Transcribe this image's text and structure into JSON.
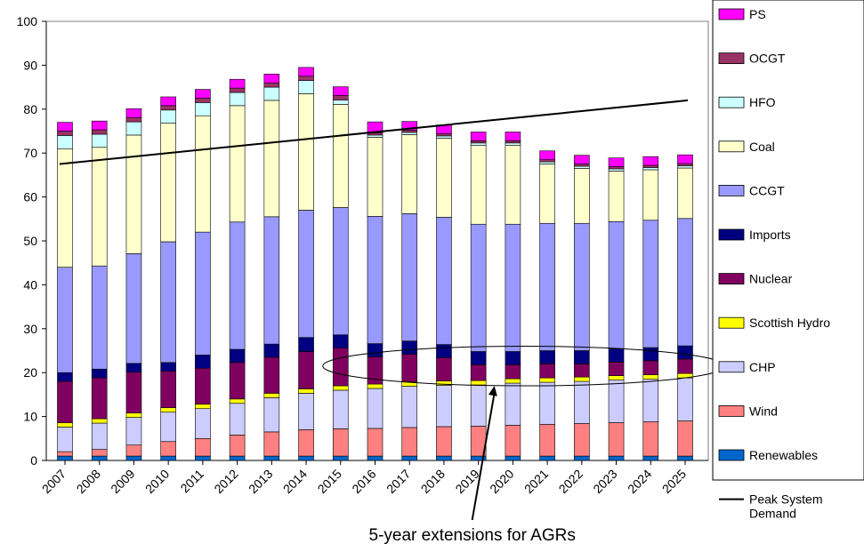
{
  "chart_data": {
    "type": "bar",
    "stacked": true,
    "title": "",
    "xlabel": "",
    "ylabel": "",
    "ylim": [
      0,
      100
    ],
    "yticks": [
      0,
      10,
      20,
      30,
      40,
      50,
      60,
      70,
      80,
      90,
      100
    ],
    "grid": false,
    "legend_position": "right",
    "categories": [
      "2007",
      "2008",
      "2009",
      "2010",
      "2011",
      "2012",
      "2013",
      "2014",
      "2015",
      "2016",
      "2017",
      "2018",
      "2019",
      "2020",
      "2021",
      "2022",
      "2023",
      "2024",
      "2025"
    ],
    "series": [
      {
        "name": "Renewables",
        "color": "#0066cc",
        "values": [
          1.0,
          1.0,
          1.0,
          1.0,
          1.0,
          1.0,
          1.0,
          1.0,
          1.0,
          1.0,
          1.0,
          1.0,
          1.0,
          1.0,
          1.0,
          1.0,
          1.0,
          1.0,
          1.0
        ]
      },
      {
        "name": "Wind",
        "color": "#ff8080",
        "values": [
          1.0,
          1.5,
          2.5,
          3.3,
          4.0,
          4.8,
          5.5,
          6.0,
          6.2,
          6.3,
          6.5,
          6.7,
          6.8,
          7.0,
          7.2,
          7.4,
          7.6,
          7.8,
          8.0
        ]
      },
      {
        "name": "CHP",
        "color": "#ccccff",
        "values": [
          5.6,
          6.0,
          6.3,
          6.7,
          6.8,
          7.2,
          7.8,
          8.3,
          8.8,
          9.1,
          9.4,
          9.4,
          9.4,
          9.6,
          9.6,
          9.6,
          9.7,
          9.7,
          9.8
        ]
      },
      {
        "name": "Scottish Hydro",
        "color": "#ffff00",
        "values": [
          1.0,
          1.0,
          1.0,
          1.0,
          1.0,
          1.0,
          1.0,
          1.0,
          1.0,
          1.0,
          1.0,
          1.0,
          1.0,
          1.0,
          1.0,
          1.0,
          1.0,
          1.0,
          1.0
        ]
      },
      {
        "name": "Nuclear",
        "color": "#800060",
        "values": [
          9.4,
          9.3,
          9.3,
          8.3,
          8.2,
          8.3,
          8.2,
          8.5,
          8.6,
          6.2,
          6.3,
          5.3,
          3.6,
          3.2,
          3.2,
          3.0,
          3.1,
          3.2,
          3.3
        ]
      },
      {
        "name": "Imports",
        "color": "#000080",
        "values": [
          2.0,
          2.0,
          2.0,
          2.0,
          3.0,
          3.0,
          3.0,
          3.2,
          3.0,
          3.0,
          3.0,
          3.0,
          3.0,
          3.0,
          3.0,
          3.0,
          3.0,
          3.0,
          3.0
        ]
      },
      {
        "name": "CCGT",
        "color": "#9999ff",
        "values": [
          24.0,
          23.5,
          25.0,
          27.5,
          28.0,
          29.0,
          29.0,
          29.0,
          29.0,
          29.0,
          29.0,
          29.0,
          29.0,
          29.0,
          29.0,
          29.0,
          29.0,
          29.0,
          29.0
        ]
      },
      {
        "name": "Coal",
        "color": "#ffffcc",
        "values": [
          27.0,
          27.0,
          27.0,
          27.0,
          26.5,
          26.5,
          26.5,
          26.5,
          23.5,
          18.0,
          18.0,
          18.0,
          18.0,
          18.0,
          13.5,
          12.5,
          11.5,
          11.5,
          11.5
        ]
      },
      {
        "name": "HFO",
        "color": "#ccffff",
        "values": [
          3.0,
          3.0,
          3.0,
          3.0,
          3.0,
          3.0,
          3.0,
          3.0,
          1.0,
          0.5,
          0.5,
          0.5,
          0.5,
          0.5,
          0.5,
          0.5,
          0.5,
          0.5,
          0.5
        ]
      },
      {
        "name": "OCGT",
        "color": "#993366",
        "values": [
          1.0,
          1.0,
          1.0,
          1.0,
          1.0,
          1.0,
          1.0,
          1.0,
          1.0,
          0.5,
          0.5,
          0.5,
          0.5,
          0.5,
          0.5,
          0.5,
          0.5,
          0.5,
          0.5
        ]
      },
      {
        "name": "PS",
        "color": "#ff00ff",
        "values": [
          2.0,
          2.0,
          2.0,
          2.0,
          2.0,
          2.0,
          2.0,
          2.0,
          2.0,
          2.5,
          2.0,
          2.0,
          2.0,
          2.0,
          2.0,
          2.0,
          2.0,
          2.0,
          2.0
        ]
      }
    ],
    "line_series": {
      "name": "Peak System Demand",
      "color": "#000000",
      "points": [
        {
          "x": "2007",
          "y": 67.5
        },
        {
          "x": "2025",
          "y": 82.0
        }
      ]
    },
    "annotations": [
      {
        "text": "5-year extensions for AGRs",
        "type": "ellipse-with-arrow",
        "x_range": [
          "2015",
          "2025"
        ],
        "y_range": [
          17,
          26
        ],
        "arrow_target": "2019"
      }
    ]
  }
}
